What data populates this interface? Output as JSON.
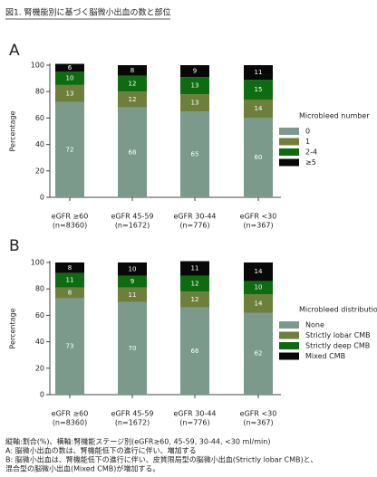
{
  "title": "図1. 腎機能別に基づく脳微小出血の数と部位",
  "chart_data": [
    {
      "type": "stacked_bar",
      "panel": "A",
      "ylabel": "Percentage",
      "categories": [
        "eGFR ≥60",
        "eGFR 45-59",
        "eGFR 30-44",
        "eGFR <30"
      ],
      "sample_sizes": [
        "(n=8360)",
        "(n=1672)",
        "(n=776)",
        "(n=367)"
      ],
      "ylim": [
        0,
        100
      ],
      "yticks": [
        0,
        20,
        40,
        60,
        80,
        100
      ],
      "legend_title": "Microbleed number",
      "series": [
        {
          "name": "0",
          "color": "#7b9a8b",
          "values": [
            72,
            68,
            65,
            60
          ]
        },
        {
          "name": "1",
          "color": "#6e7f3c",
          "values": [
            13,
            12,
            13,
            14
          ]
        },
        {
          "name": "2-4",
          "color": "#0e6b12",
          "values": [
            10,
            12,
            13,
            15
          ]
        },
        {
          "name": "≥5",
          "color": "#080808",
          "values": [
            6,
            8,
            9,
            11
          ]
        }
      ]
    },
    {
      "type": "stacked_bar",
      "panel": "B",
      "ylabel": "Percentage",
      "categories": [
        "eGFR ≥60",
        "eGFR 45-59",
        "eGFR 30-44",
        "eGFR <30"
      ],
      "sample_sizes": [
        "(n=8360)",
        "(n=1672)",
        "(n=776)",
        "(n=367)"
      ],
      "ylim": [
        0,
        100
      ],
      "yticks": [
        0,
        20,
        40,
        60,
        80,
        100
      ],
      "legend_title": "Microbleed distribution",
      "series": [
        {
          "name": "None",
          "color": "#7b9a8b",
          "values": [
            73,
            70,
            66,
            62
          ]
        },
        {
          "name": "Strictly lobar CMB",
          "color": "#6e7f3c",
          "values": [
            8,
            11,
            12,
            14
          ]
        },
        {
          "name": "Strictly deep CMB",
          "color": "#0e6b12",
          "values": [
            11,
            9,
            12,
            10
          ]
        },
        {
          "name": "Mixed CMB",
          "color": "#080808",
          "values": [
            8,
            10,
            11,
            14
          ]
        }
      ]
    }
  ],
  "notes": [
    "縦軸:割合(%)、横軸:腎機能ステージ別(eGFR≥60, 45-59, 30-44, <30 ml/min)",
    "A: 脳微小出血の数は、腎機能低下の進行に伴い、増加する",
    "B: 脳微小出血は、腎機能低下の進行に伴い、皮質限局型の脳微小出血(Strictly lobar CMB)と、",
    "混合型の脳微小出血(Mixed CMB)が増加する。"
  ]
}
